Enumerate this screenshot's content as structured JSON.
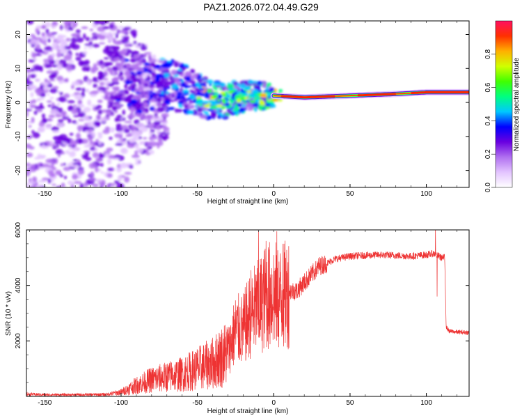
{
  "title": "PAZ1.2026.072.04.49.G29",
  "chart_data": [
    {
      "type": "heatmap",
      "name": "spectrogram",
      "xlabel": "Height of straight line (km)",
      "ylabel": "Frequency (Hz)",
      "xlim": [
        -162,
        128
      ],
      "ylim": [
        -25,
        24
      ],
      "x_ticks": [
        -150,
        -100,
        -50,
        0,
        50,
        100
      ],
      "y_ticks": [
        -20,
        -10,
        0,
        10,
        20
      ],
      "colorbar": {
        "label": "Normalized spectral amplitude",
        "range": [
          0,
          1
        ],
        "ticks": [
          "0.0",
          "0.2",
          "0.4",
          "0.6",
          "0.8"
        ],
        "tick_values": [
          0.0,
          0.2,
          0.4,
          0.6,
          0.8
        ],
        "colors": [
          "#ffffff",
          "#e3c4ff",
          "#b070f0",
          "#6a00e0",
          "#0000ff",
          "#00c8ff",
          "#00ff80",
          "#40ff00",
          "#d0ff00",
          "#ffb000",
          "#ff3000",
          "#ff1060"
        ]
      },
      "ridge": [
        {
          "x": -100,
          "f": 6.5
        },
        {
          "x": -80,
          "f": 5.5
        },
        {
          "x": -60,
          "f": 4.5
        },
        {
          "x": -40,
          "f": 0.5
        },
        {
          "x": -20,
          "f": 1.5
        },
        {
          "x": -10,
          "f": 2
        },
        {
          "x": 0,
          "f": 2
        },
        {
          "x": 20,
          "f": 1.5
        },
        {
          "x": 50,
          "f": 2
        },
        {
          "x": 80,
          "f": 2.5
        },
        {
          "x": 100,
          "f": 3
        },
        {
          "x": 128,
          "f": 3
        }
      ]
    },
    {
      "type": "line",
      "name": "snr",
      "xlabel": "Height of straight line (km)",
      "ylabel": "SNR (10 * v/v)",
      "xlim": [
        -162,
        128
      ],
      "ylim": [
        0,
        6000
      ],
      "x_ticks": [
        -150,
        -100,
        -50,
        0,
        50,
        100
      ],
      "y_ticks": [
        2000,
        4000,
        6000
      ],
      "color": "#ee3333",
      "series": [
        {
          "name": "SNR",
          "x": [
            -162,
            -150,
            -130,
            -110,
            -100,
            -90,
            -80,
            -70,
            -60,
            -50,
            -40,
            -30,
            -25,
            -20,
            -15,
            -10,
            -5,
            0,
            5,
            10,
            15,
            20,
            25,
            30,
            35,
            40,
            50,
            60,
            70,
            80,
            90,
            100,
            105,
            110,
            112,
            113,
            115,
            120,
            128
          ],
          "values": [
            80,
            60,
            60,
            70,
            150,
            400,
            600,
            700,
            800,
            1000,
            1200,
            1600,
            2400,
            2400,
            3000,
            3200,
            3600,
            3700,
            3500,
            3800,
            3800,
            4100,
            4400,
            4700,
            4800,
            4950,
            5050,
            5080,
            5100,
            5080,
            5050,
            5100,
            5150,
            5000,
            5000,
            2500,
            2350,
            2320,
            2300
          ]
        }
      ],
      "spikes": [
        {
          "x": -10,
          "value": 5950
        },
        {
          "x": -5,
          "value": 5600
        },
        {
          "x": 2,
          "value": 5950
        },
        {
          "x": 6,
          "value": 5500
        },
        {
          "x": 106,
          "value": 6050
        },
        {
          "x": 107,
          "value": 3600
        }
      ]
    }
  ]
}
